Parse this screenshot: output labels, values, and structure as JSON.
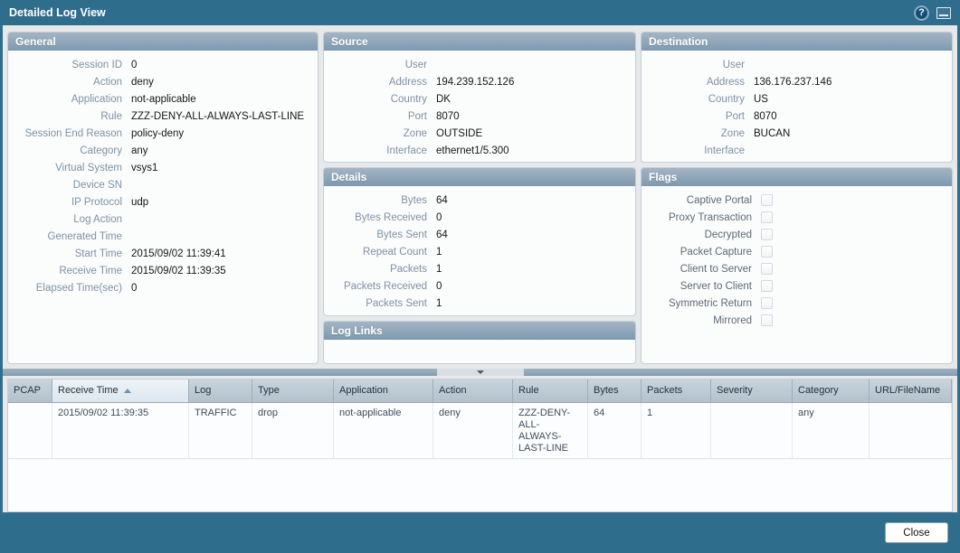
{
  "window": {
    "title": "Detailed Log View",
    "icons": {
      "help": "?",
      "popout": "popout-window"
    }
  },
  "palette": {
    "chrome_teal": "#2f6d8d",
    "panel_header": "#8ba4b8",
    "field_label": "#7e90a3",
    "sorted_column_bg": "#e3ebf2"
  },
  "panels": {
    "general": {
      "title": "General",
      "fields": [
        {
          "label": "Session ID",
          "value": "0"
        },
        {
          "label": "Action",
          "value": "deny"
        },
        {
          "label": "Application",
          "value": "not-applicable"
        },
        {
          "label": "Rule",
          "value": "ZZZ-DENY-ALL-ALWAYS-LAST-LINE"
        },
        {
          "label": "Session End Reason",
          "value": "policy-deny"
        },
        {
          "label": "Category",
          "value": "any"
        },
        {
          "label": "Virtual System",
          "value": "vsys1"
        },
        {
          "label": "Device SN",
          "value": ""
        },
        {
          "label": "IP Protocol",
          "value": "udp"
        },
        {
          "label": "Log Action",
          "value": ""
        },
        {
          "label": "Generated Time",
          "value": ""
        },
        {
          "label": "Start Time",
          "value": "2015/09/02 11:39:41"
        },
        {
          "label": "Receive Time",
          "value": "2015/09/02 11:39:35"
        },
        {
          "label": "Elapsed Time(sec)",
          "value": "0"
        }
      ]
    },
    "source": {
      "title": "Source",
      "fields": [
        {
          "label": "User",
          "value": ""
        },
        {
          "label": "Address",
          "value": "194.239.152.126"
        },
        {
          "label": "Country",
          "value": "DK"
        },
        {
          "label": "Port",
          "value": "8070"
        },
        {
          "label": "Zone",
          "value": "OUTSIDE"
        },
        {
          "label": "Interface",
          "value": "ethernet1/5.300"
        }
      ]
    },
    "details": {
      "title": "Details",
      "fields": [
        {
          "label": "Bytes",
          "value": "64"
        },
        {
          "label": "Bytes Received",
          "value": "0"
        },
        {
          "label": "Bytes Sent",
          "value": "64"
        },
        {
          "label": "Repeat Count",
          "value": "1"
        },
        {
          "label": "Packets",
          "value": "1"
        },
        {
          "label": "Packets Received",
          "value": "0"
        },
        {
          "label": "Packets Sent",
          "value": "1"
        }
      ]
    },
    "log_links": {
      "title": "Log Links"
    },
    "destination": {
      "title": "Destination",
      "fields": [
        {
          "label": "User",
          "value": ""
        },
        {
          "label": "Address",
          "value": "136.176.237.146"
        },
        {
          "label": "Country",
          "value": "US"
        },
        {
          "label": "Port",
          "value": "8070"
        },
        {
          "label": "Zone",
          "value": "BUCAN"
        },
        {
          "label": "Interface",
          "value": ""
        }
      ]
    },
    "flags": {
      "title": "Flags",
      "items": [
        {
          "label": "Captive Portal",
          "checked": false
        },
        {
          "label": "Proxy Transaction",
          "checked": false
        },
        {
          "label": "Decrypted",
          "checked": false
        },
        {
          "label": "Packet Capture",
          "checked": false
        },
        {
          "label": "Client to Server",
          "checked": false
        },
        {
          "label": "Server to Client",
          "checked": false
        },
        {
          "label": "Symmetric Return",
          "checked": false
        },
        {
          "label": "Mirrored",
          "checked": false
        }
      ]
    }
  },
  "log_table": {
    "columns": [
      "PCAP",
      "Receive Time",
      "Log",
      "Type",
      "Application",
      "Action",
      "Rule",
      "Bytes",
      "Packets",
      "Severity",
      "Category",
      "URL/FileName"
    ],
    "sorted_column": "Receive Time",
    "sort_direction": "ascending",
    "rows": [
      [
        "",
        "2015/09/02 11:39:35",
        "TRAFFIC",
        "drop",
        "not-applicable",
        "deny",
        "ZZZ-DENY-ALL-ALWAYS-LAST-LINE",
        "64",
        "1",
        "",
        "any",
        ""
      ]
    ]
  },
  "footer": {
    "close_label": "Close"
  }
}
